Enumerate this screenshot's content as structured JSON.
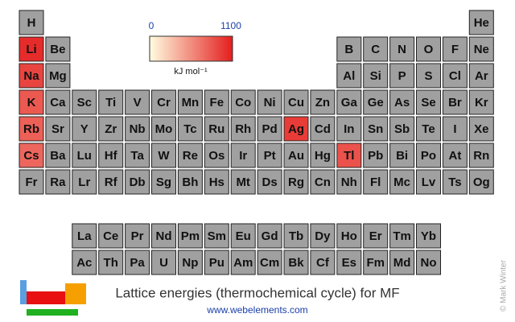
{
  "title": "Lattice energies (thermochemical cycle) for MF",
  "url": "www.webelements.com",
  "credit": "© Mark Winter",
  "scale": {
    "min": 0,
    "max": 1100,
    "unit": "kJ mol⁻¹",
    "colors": [
      "#fffde0",
      "#e41e1e"
    ]
  },
  "periods": [
    [
      {
        "symbol": "H"
      },
      {
        "symbol": "He"
      }
    ],
    [
      {
        "symbol": "Li",
        "value": 1030
      },
      {
        "symbol": "Be"
      },
      {
        "symbol": "B"
      },
      {
        "symbol": "C"
      },
      {
        "symbol": "N"
      },
      {
        "symbol": "O"
      },
      {
        "symbol": "F"
      },
      {
        "symbol": "Ne"
      }
    ],
    [
      {
        "symbol": "Na",
        "value": 910
      },
      {
        "symbol": "Mg"
      },
      {
        "symbol": "Al"
      },
      {
        "symbol": "Si"
      },
      {
        "symbol": "P"
      },
      {
        "symbol": "S"
      },
      {
        "symbol": "Cl"
      },
      {
        "symbol": "Ar"
      }
    ],
    [
      {
        "symbol": "K",
        "value": 808
      },
      {
        "symbol": "Ca"
      },
      {
        "symbol": "Sc"
      },
      {
        "symbol": "Ti"
      },
      {
        "symbol": "V"
      },
      {
        "symbol": "Cr"
      },
      {
        "symbol": "Mn"
      },
      {
        "symbol": "Fe"
      },
      {
        "symbol": "Co"
      },
      {
        "symbol": "Ni"
      },
      {
        "symbol": "Cu"
      },
      {
        "symbol": "Zn"
      },
      {
        "symbol": "Ga"
      },
      {
        "symbol": "Ge"
      },
      {
        "symbol": "As"
      },
      {
        "symbol": "Se"
      },
      {
        "symbol": "Br"
      },
      {
        "symbol": "Kr"
      }
    ],
    [
      {
        "symbol": "Rb",
        "value": 774
      },
      {
        "symbol": "Sr"
      },
      {
        "symbol": "Y"
      },
      {
        "symbol": "Zr"
      },
      {
        "symbol": "Nb"
      },
      {
        "symbol": "Mo"
      },
      {
        "symbol": "Tc"
      },
      {
        "symbol": "Ru"
      },
      {
        "symbol": "Rh"
      },
      {
        "symbol": "Pd"
      },
      {
        "symbol": "Ag",
        "value": 953
      },
      {
        "symbol": "Cd"
      },
      {
        "symbol": "In"
      },
      {
        "symbol": "Sn"
      },
      {
        "symbol": "Sb"
      },
      {
        "symbol": "Te"
      },
      {
        "symbol": "I"
      },
      {
        "symbol": "Xe"
      }
    ],
    [
      {
        "symbol": "Cs",
        "value": 744
      },
      {
        "symbol": "Ba"
      },
      {
        "symbol": "Lu"
      },
      {
        "symbol": "Hf"
      },
      {
        "symbol": "Ta"
      },
      {
        "symbol": "W"
      },
      {
        "symbol": "Re"
      },
      {
        "symbol": "Os"
      },
      {
        "symbol": "Ir"
      },
      {
        "symbol": "Pt"
      },
      {
        "symbol": "Au"
      },
      {
        "symbol": "Hg"
      },
      {
        "symbol": "Tl",
        "value": 845
      },
      {
        "symbol": "Pb"
      },
      {
        "symbol": "Bi"
      },
      {
        "symbol": "Po"
      },
      {
        "symbol": "At"
      },
      {
        "symbol": "Rn"
      }
    ],
    [
      {
        "symbol": "Fr"
      },
      {
        "symbol": "Ra"
      },
      {
        "symbol": "Lr"
      },
      {
        "symbol": "Rf"
      },
      {
        "symbol": "Db"
      },
      {
        "symbol": "Sg"
      },
      {
        "symbol": "Bh"
      },
      {
        "symbol": "Hs"
      },
      {
        "symbol": "Mt"
      },
      {
        "symbol": "Ds"
      },
      {
        "symbol": "Rg"
      },
      {
        "symbol": "Cn"
      },
      {
        "symbol": "Nh"
      },
      {
        "symbol": "Fl"
      },
      {
        "symbol": "Mc"
      },
      {
        "symbol": "Lv"
      },
      {
        "symbol": "Ts"
      },
      {
        "symbol": "Og"
      }
    ],
    [
      {
        "symbol": "La"
      },
      {
        "symbol": "Ce"
      },
      {
        "symbol": "Pr"
      },
      {
        "symbol": "Nd"
      },
      {
        "symbol": "Pm"
      },
      {
        "symbol": "Sm"
      },
      {
        "symbol": "Eu"
      },
      {
        "symbol": "Gd"
      },
      {
        "symbol": "Tb"
      },
      {
        "symbol": "Dy"
      },
      {
        "symbol": "Ho"
      },
      {
        "symbol": "Er"
      },
      {
        "symbol": "Tm"
      },
      {
        "symbol": "Yb"
      }
    ],
    [
      {
        "symbol": "Ac"
      },
      {
        "symbol": "Th"
      },
      {
        "symbol": "Pa"
      },
      {
        "symbol": "U"
      },
      {
        "symbol": "Np"
      },
      {
        "symbol": "Pu"
      },
      {
        "symbol": "Am"
      },
      {
        "symbol": "Cm"
      },
      {
        "symbol": "Bk"
      },
      {
        "symbol": "Cf"
      },
      {
        "symbol": "Es"
      },
      {
        "symbol": "Fm"
      },
      {
        "symbol": "Md"
      },
      {
        "symbol": "No"
      }
    ]
  ]
}
